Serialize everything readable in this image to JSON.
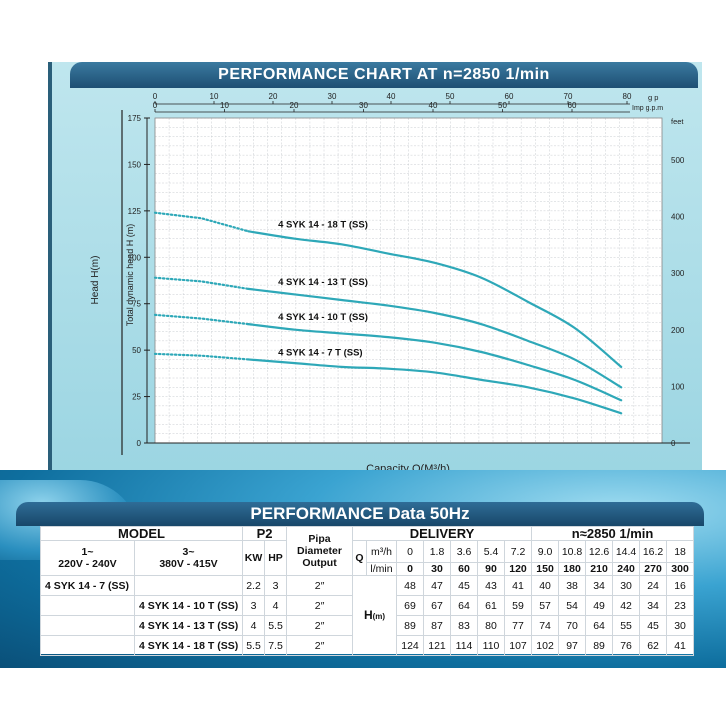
{
  "chart_title": "PERFORMANCE CHART AT n=2850 1/min",
  "chart_data": {
    "type": "line",
    "xlabel": "Capacity Q(M³/h)",
    "ylabel": "Head H(m)",
    "ylabel_inner": "Total dynamic head H (m)",
    "ylim": [
      0,
      175
    ],
    "y_ticks": [
      "0",
      "25",
      "50",
      "75",
      "100",
      "125",
      "150",
      "175"
    ],
    "top_axis_1": {
      "unit": "g p",
      "ticks": [
        "0",
        "10",
        "20",
        "30",
        "40",
        "50",
        "60",
        "70",
        "80"
      ]
    },
    "top_axis_2": {
      "unit": "Imp g.p.m",
      "ticks": [
        "0",
        "10",
        "20",
        "30",
        "40",
        "50",
        "60"
      ]
    },
    "right_axis": {
      "unit": "feet",
      "ticks": [
        "0",
        "100",
        "200",
        "300",
        "400",
        "500"
      ]
    },
    "grid": true,
    "x": [
      0,
      1.8,
      3.6,
      5.4,
      7.2,
      9.0,
      10.8,
      12.6,
      14.4,
      16.2,
      18
    ],
    "series": [
      {
        "name": "4 SYK 14 - 18 T (SS)",
        "values": [
          124,
          121,
          114,
          110,
          107,
          102,
          97,
          89,
          76,
          62,
          41
        ]
      },
      {
        "name": "4 SYK 14 - 13 T (SS)",
        "values": [
          89,
          87,
          83,
          80,
          77,
          74,
          70,
          64,
          55,
          45,
          30
        ]
      },
      {
        "name": "4 SYK 14 - 10 T (SS)",
        "values": [
          69,
          67,
          64,
          61,
          59,
          57,
          54,
          49,
          42,
          34,
          23
        ]
      },
      {
        "name": "4 SYK 14 - 7 T (SS)",
        "values": [
          48,
          47,
          45,
          43,
          41,
          40,
          38,
          34,
          30,
          24,
          16
        ]
      }
    ],
    "line_color": "#2ea8b8"
  },
  "table": {
    "title": "PERFORMANCE Data 50Hz",
    "model_label": "MODEL",
    "p2_label": "P2",
    "pipe_label": [
      "Pipa",
      "Diameter",
      "Output"
    ],
    "delivery_label": "DELIVERY",
    "speed_label": "n≈2850 1/min",
    "single_phase": [
      "1~",
      "220V - 240V"
    ],
    "three_phase": [
      "3~",
      "380V - 415V"
    ],
    "kw": "KW",
    "hp": "HP",
    "q_label": "Q",
    "q_units": [
      "m³/h",
      "l/min"
    ],
    "h_label": "H",
    "h_unit": "(m)",
    "q_m3h": [
      "0",
      "1.8",
      "3.6",
      "5.4",
      "7.2",
      "9.0",
      "10.8",
      "12.6",
      "14.4",
      "16.2",
      "18"
    ],
    "q_lmin": [
      "0",
      "30",
      "60",
      "90",
      "120",
      "150",
      "180",
      "210",
      "240",
      "270",
      "300"
    ],
    "rows": [
      {
        "model1": "4 SYK 14 - 7 (SS)",
        "model3": "",
        "kw": "2.2",
        "hp": "3",
        "pipe": "2″",
        "h": [
          "48",
          "47",
          "45",
          "43",
          "41",
          "40",
          "38",
          "34",
          "30",
          "24",
          "16"
        ]
      },
      {
        "model1": "",
        "model3": "4 SYK 14 - 10 T (SS)",
        "kw": "3",
        "hp": "4",
        "pipe": "2″",
        "h": [
          "69",
          "67",
          "64",
          "61",
          "59",
          "57",
          "54",
          "49",
          "42",
          "34",
          "23"
        ]
      },
      {
        "model1": "",
        "model3": "4 SYK 14 - 13 T (SS)",
        "kw": "4",
        "hp": "5.5",
        "pipe": "2″",
        "h": [
          "89",
          "87",
          "83",
          "80",
          "77",
          "74",
          "70",
          "64",
          "55",
          "45",
          "30"
        ]
      },
      {
        "model1": "",
        "model3": "4 SYK 14 - 18 T (SS)",
        "kw": "5.5",
        "hp": "7.5",
        "pipe": "2″",
        "h": [
          "124",
          "121",
          "114",
          "110",
          "107",
          "102",
          "97",
          "89",
          "76",
          "62",
          "41"
        ]
      }
    ]
  }
}
